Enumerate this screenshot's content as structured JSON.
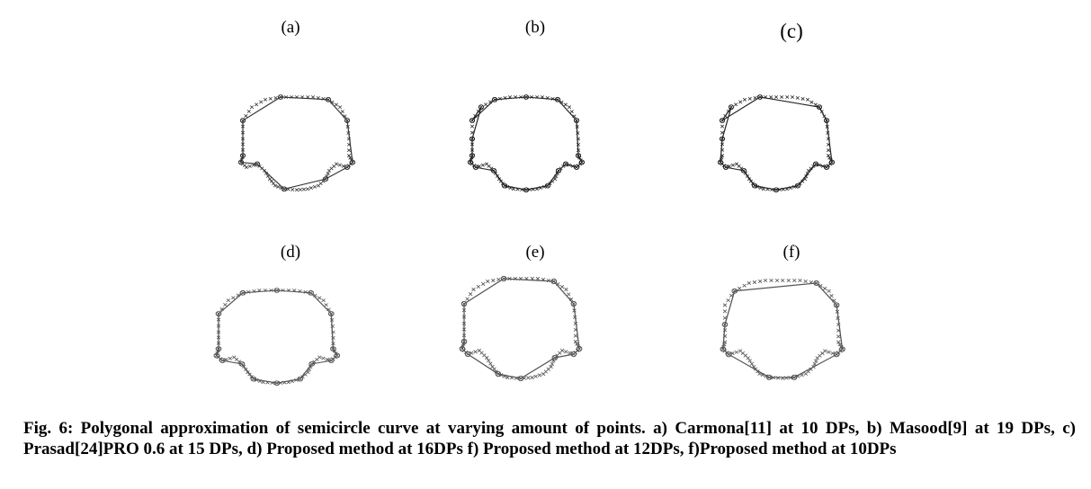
{
  "figure": {
    "panels": [
      {
        "id": "a",
        "label": "(a)"
      },
      {
        "id": "b",
        "label": "(b)"
      },
      {
        "id": "c",
        "label": "(c)"
      },
      {
        "id": "d",
        "label": "(d)"
      },
      {
        "id": "e",
        "label": "(e)"
      },
      {
        "id": "f",
        "label": "(f)"
      }
    ],
    "caption": "Fig. 6: Polygonal approximation of semicircle curve at varying amount of points. a) Carmona[11] at 10 DPs, b) Masood[9] at 19 DPs, c) Prasad[24]PRO 0.6 at 15 DPs, d) Proposed method at 16DPs f) Proposed method at 12DPs, f)Proposed method at 10DPs"
  }
}
